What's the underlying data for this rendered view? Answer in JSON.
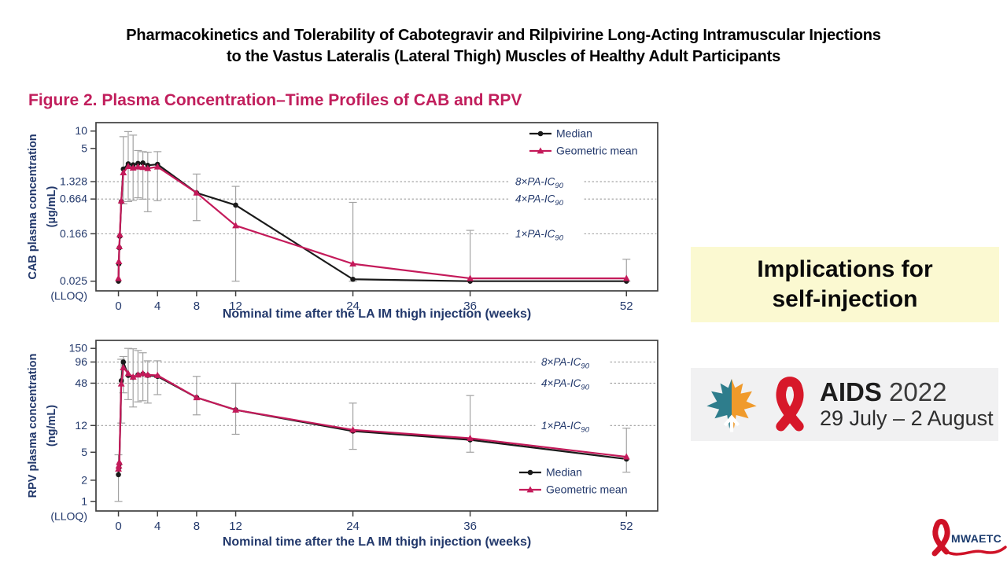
{
  "slide": {
    "title_line1": "Pharmacokinetics and Tolerability of Cabotegravir and Rilpivirine Long-Acting Intramuscular Injections",
    "title_line2": "to the Vastus Lateralis (Lateral Thigh) Muscles of Healthy Adult Participants",
    "figure_caption": "Figure 2. Plasma Concentration–Time Profiles of CAB and RPV"
  },
  "callout": {
    "line1": "Implications for",
    "line2": "self-injection"
  },
  "aids_logo": {
    "name": "AIDS",
    "year": "2022",
    "dates": "29 July – 2 August"
  },
  "mwaetc": {
    "label": "MWAETC"
  },
  "colors": {
    "figure_caption": "#c11e5c",
    "navy_axis_text": "#22386b",
    "median_series": "#1a1a1a",
    "geomean_series": "#c41a5a",
    "gridline_gray": "#9b9b9b",
    "error_bar_gray": "#a3a3a3",
    "callout_bg": "#fbf9d1",
    "logo_box_bg": "#f1f1f2",
    "ribbon_red": "#d7182a",
    "leaf_teal": "#2e7d8c",
    "leaf_orange": "#f09a2b"
  },
  "chart_data": [
    {
      "type": "line",
      "id": "cab",
      "ylabel": "CAB plasma concentration",
      "ylabel_units": "(µg/mL)",
      "xlabel": "Nominal time after the LA IM thigh injection (weeks)",
      "yscale": "log",
      "xlim": [
        -2.3,
        55.2
      ],
      "ylim": [
        0.017,
        14
      ],
      "xticks": [
        0,
        4,
        8,
        12,
        24,
        36,
        52
      ],
      "yticks": [
        {
          "v": 10,
          "label": "10"
        },
        {
          "v": 5,
          "label": "5"
        },
        {
          "v": 1.328,
          "label": "1.328"
        },
        {
          "v": 0.664,
          "label": "0.664"
        },
        {
          "v": 0.166,
          "label": "0.166"
        },
        {
          "v": 0.025,
          "label": "0.025"
        }
      ],
      "lloq_label": "(LLOQ)",
      "thresholds": [
        {
          "v": 1.328,
          "label": "8×PA-IC",
          "sub": "90"
        },
        {
          "v": 0.664,
          "label": "4×PA-IC",
          "sub": "90"
        },
        {
          "v": 0.166,
          "label": "1×PA-IC",
          "sub": "90"
        }
      ],
      "legend_position": "top-right",
      "series": [
        {
          "name": "Median",
          "color": "#1a1a1a",
          "marker": "circle",
          "x": [
            0,
            0.04,
            0.09,
            0.14,
            0.29,
            0.5,
            1,
            1.5,
            2,
            2.5,
            3,
            4,
            8,
            12,
            24,
            36,
            52
          ],
          "y": [
            0.025,
            0.05,
            0.095,
            0.15,
            0.6,
            2.2,
            2.7,
            2.6,
            2.75,
            2.8,
            2.55,
            2.65,
            0.85,
            0.52,
            0.027,
            0.025,
            0.025
          ]
        },
        {
          "name": "Geometric mean",
          "color": "#c41a5a",
          "marker": "triangle",
          "x": [
            0,
            0.04,
            0.09,
            0.14,
            0.29,
            0.5,
            1,
            1.5,
            2,
            2.5,
            3,
            4,
            8,
            12,
            24,
            36,
            52
          ],
          "y": [
            0.028,
            0.055,
            0.1,
            0.16,
            0.62,
            1.9,
            2.45,
            2.3,
            2.4,
            2.35,
            2.25,
            2.4,
            0.85,
            0.23,
            0.05,
            0.028,
            0.028
          ]
        }
      ],
      "error_bars": [
        {
          "x": 0.5,
          "lo": 0.55,
          "hi": 8
        },
        {
          "x": 1,
          "lo": 0.6,
          "hi": 9.8
        },
        {
          "x": 1.5,
          "lo": 0.63,
          "hi": 8.5
        },
        {
          "x": 2,
          "lo": 0.7,
          "hi": 4.6
        },
        {
          "x": 2.5,
          "lo": 0.66,
          "hi": 4.4
        },
        {
          "x": 3,
          "lo": 0.4,
          "hi": 4.3
        },
        {
          "x": 4,
          "lo": 0.62,
          "hi": 4.4
        },
        {
          "x": 8,
          "lo": 0.28,
          "hi": 1.8
        },
        {
          "x": 12,
          "lo": 0.025,
          "hi": 1.1
        },
        {
          "x": 24,
          "lo": 0.025,
          "hi": 0.58
        },
        {
          "x": 36,
          "lo": 0.025,
          "hi": 0.19
        },
        {
          "x": 52,
          "lo": 0.025,
          "hi": 0.06
        }
      ]
    },
    {
      "type": "line",
      "id": "rpv",
      "ylabel": "RPV plasma concentration",
      "ylabel_units": "(ng/mL)",
      "xlabel": "Nominal time after the LA IM thigh injection (weeks)",
      "yscale": "log",
      "xlim": [
        -2.3,
        55.2
      ],
      "ylim": [
        0.73,
        195
      ],
      "xticks": [
        0,
        4,
        8,
        12,
        24,
        36,
        52
      ],
      "yticks": [
        {
          "v": 150,
          "label": "150"
        },
        {
          "v": 96,
          "label": "96"
        },
        {
          "v": 48,
          "label": "48"
        },
        {
          "v": 12,
          "label": "12"
        },
        {
          "v": 5,
          "label": "5"
        },
        {
          "v": 2,
          "label": "2"
        },
        {
          "v": 1,
          "label": "1"
        }
      ],
      "lloq_label": "(LLOQ)",
      "thresholds": [
        {
          "v": 96,
          "label": "8×PA-IC",
          "sub": "90"
        },
        {
          "v": 48,
          "label": "4×PA-IC",
          "sub": "90"
        },
        {
          "v": 12,
          "label": "1×PA-IC",
          "sub": "90"
        }
      ],
      "legend_position": "bottom-right",
      "series": [
        {
          "name": "Median",
          "color": "#1a1a1a",
          "marker": "circle",
          "x": [
            0,
            0.04,
            0.09,
            0.29,
            0.5,
            1,
            1.5,
            2,
            2.5,
            3,
            4,
            8,
            12,
            24,
            36,
            52
          ],
          "y": [
            2.4,
            3.0,
            3.4,
            52,
            96,
            62,
            58,
            63,
            65,
            62,
            60,
            30,
            20,
            10,
            7.5,
            4.0
          ]
        },
        {
          "name": "Geometric mean",
          "color": "#c41a5a",
          "marker": "triangle",
          "x": [
            0,
            0.04,
            0.09,
            0.29,
            0.5,
            1,
            1.5,
            2,
            2.5,
            3,
            4,
            8,
            12,
            24,
            36,
            52
          ],
          "y": [
            2.9,
            3.2,
            3.6,
            47,
            80,
            66,
            59,
            63,
            66,
            63,
            62,
            30,
            20,
            10.4,
            7.9,
            4.3
          ]
        }
      ],
      "error_bars": [
        {
          "x": 0,
          "lo": 1,
          "hi": 4.6
        },
        {
          "x": 0.29,
          "lo": 13,
          "hi": 105
        },
        {
          "x": 0.5,
          "lo": 35,
          "hi": 115
        },
        {
          "x": 1,
          "lo": 28,
          "hi": 150
        },
        {
          "x": 1.5,
          "lo": 22,
          "hi": 148
        },
        {
          "x": 2,
          "lo": 26,
          "hi": 140
        },
        {
          "x": 2.5,
          "lo": 27,
          "hi": 130
        },
        {
          "x": 3,
          "lo": 25,
          "hi": 100
        },
        {
          "x": 4,
          "lo": 33,
          "hi": 100
        },
        {
          "x": 8,
          "lo": 17,
          "hi": 60
        },
        {
          "x": 12,
          "lo": 9,
          "hi": 48
        },
        {
          "x": 24,
          "lo": 5.5,
          "hi": 25
        },
        {
          "x": 36,
          "lo": 5,
          "hi": 32
        },
        {
          "x": 52,
          "lo": 2.6,
          "hi": 11
        }
      ]
    }
  ]
}
